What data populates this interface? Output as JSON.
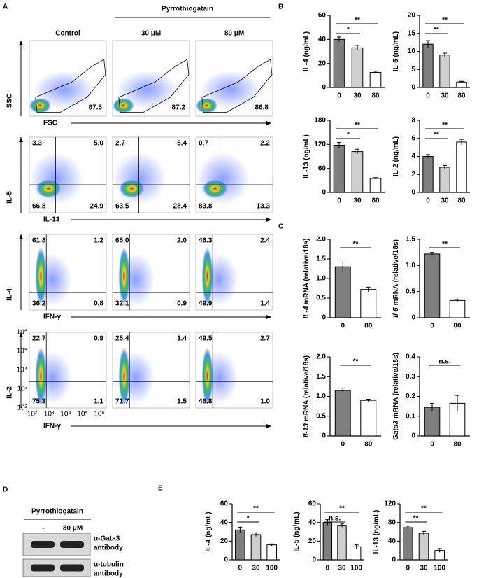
{
  "panel_labels": [
    "A",
    "B",
    "C",
    "D",
    "E"
  ],
  "flow": {
    "treatment": "Pyrrothiogatain",
    "conditions": [
      "Control",
      "30 μM",
      "80 μM"
    ],
    "rows": [
      {
        "y_axis": "SSC",
        "x_axis": "FSC",
        "gate": [
          "87.5",
          "87.2",
          "86.8"
        ]
      },
      {
        "y_axis": "IL-5",
        "x_axis": "IL-13",
        "quadrants": [
          [
            "3.3",
            "5.0",
            "66.8",
            "24.9"
          ],
          [
            "2.7",
            "5.4",
            "63.5",
            "28.4"
          ],
          [
            "0.7",
            "2.2",
            "83.8",
            "13.3"
          ]
        ]
      },
      {
        "y_axis": "IL-4",
        "x_axis": "IFN-γ",
        "quadrants": [
          [
            "61.8",
            "1.2",
            "36.2",
            "0.8"
          ],
          [
            "65.0",
            "2.0",
            "32.1",
            "0.9"
          ],
          [
            "46.3",
            "2.4",
            "49.9",
            "1.4"
          ]
        ]
      },
      {
        "y_axis": "IL-2",
        "x_axis": "IFN-γ",
        "quadrants": [
          [
            "22.7",
            "0.9",
            "75.3",
            "1.1"
          ],
          [
            "25.4",
            "1.4",
            "71.7",
            "1.5"
          ],
          [
            "49.5",
            "2.7",
            "46.8",
            "1.0"
          ]
        ]
      }
    ],
    "log_ticks": [
      "10²",
      "10³",
      "10⁴",
      "10⁵",
      "10⁶"
    ]
  },
  "western": {
    "treatment": "Pyrrothiogatain",
    "lanes": [
      "-",
      "80 μM"
    ],
    "blots": [
      [
        "α-Gata3",
        "antibody"
      ],
      [
        "α-tubulin",
        "antibody"
      ]
    ]
  },
  "chart_data": [
    {
      "type": "bar",
      "ylabel": "IL-4 (ng/mL)",
      "categories": [
        "0",
        "30",
        "80"
      ],
      "values": [
        40,
        33,
        12.5
      ],
      "errors": [
        2,
        2,
        1
      ],
      "colors": [
        "#7f7f7f",
        "#cfcfcf",
        "#ffffff"
      ],
      "ylim": [
        0,
        60
      ],
      "yticks": [
        0,
        20,
        40,
        60
      ],
      "significance": [
        {
          "pair": [
            "0",
            "30"
          ],
          "label": "*"
        },
        {
          "pair": [
            "0",
            "80"
          ],
          "label": "**"
        }
      ]
    },
    {
      "type": "bar",
      "ylabel": "IL-5 (ng/mL)",
      "categories": [
        "0",
        "30",
        "80"
      ],
      "values": [
        12,
        9,
        1.5
      ],
      "errors": [
        1,
        0.5,
        0.2
      ],
      "colors": [
        "#7f7f7f",
        "#cfcfcf",
        "#ffffff"
      ],
      "ylim": [
        0,
        20
      ],
      "yticks": [
        0,
        5,
        10,
        15,
        20
      ],
      "significance": [
        {
          "pair": [
            "0",
            "30"
          ],
          "label": "**"
        },
        {
          "pair": [
            "0",
            "80"
          ],
          "label": "**"
        }
      ]
    },
    {
      "type": "bar",
      "ylabel": "IL-13 (ng/mL)",
      "categories": [
        "0",
        "30",
        "80"
      ],
      "values": [
        118,
        102,
        35
      ],
      "errors": [
        7,
        6,
        2
      ],
      "colors": [
        "#7f7f7f",
        "#cfcfcf",
        "#ffffff"
      ],
      "ylim": [
        0,
        180
      ],
      "yticks": [
        0,
        60,
        120,
        180
      ],
      "significance": [
        {
          "pair": [
            "0",
            "30"
          ],
          "label": "*"
        },
        {
          "pair": [
            "0",
            "80"
          ],
          "label": "**"
        }
      ]
    },
    {
      "type": "bar",
      "ylabel": "IL-2 (ng/mL)",
      "categories": [
        "0",
        "30",
        "80"
      ],
      "values": [
        4,
        2.8,
        5.6
      ],
      "errors": [
        0.2,
        0.2,
        0.3
      ],
      "colors": [
        "#7f7f7f",
        "#cfcfcf",
        "#ffffff"
      ],
      "ylim": [
        0,
        8
      ],
      "yticks": [
        0,
        2,
        4,
        6,
        8
      ],
      "significance": [
        {
          "pair": [
            "0",
            "30"
          ],
          "label": "**"
        },
        {
          "pair": [
            "0",
            "80"
          ],
          "label": "**"
        }
      ]
    },
    {
      "type": "bar",
      "ylabel_gene": "IL-4",
      "ylabel": "mRNA (relative/18s)",
      "categories": [
        "0",
        "80"
      ],
      "values": [
        1.3,
        0.72
      ],
      "errors": [
        0.12,
        0.06
      ],
      "colors": [
        "#7f7f7f",
        "#ffffff"
      ],
      "ylim": [
        0,
        2
      ],
      "yticks": [
        0,
        0.5,
        {
          "value": 1,
          "label": "1.0"
        },
        1.5,
        {
          "value": 2,
          "label": "2.0"
        }
      ],
      "significance": [
        {
          "pair": [
            "0",
            "80"
          ],
          "label": "**"
        }
      ]
    },
    {
      "type": "bar",
      "ylabel_gene": "Il-5",
      "ylabel": "mRNA (relative/18s)",
      "categories": [
        "0",
        "80"
      ],
      "values": [
        1.22,
        0.33
      ],
      "errors": [
        0.03,
        0.02
      ],
      "colors": [
        "#7f7f7f",
        "#ffffff"
      ],
      "ylim": [
        0,
        1.5
      ],
      "yticks": [
        0,
        0.5,
        {
          "value": 1,
          "label": "1.0"
        },
        1.5
      ],
      "significance": [
        {
          "pair": [
            "0",
            "80"
          ],
          "label": "**"
        }
      ]
    },
    {
      "type": "bar",
      "ylabel_gene": "Il-13",
      "ylabel": "mRNA (relative/18s)",
      "categories": [
        "0",
        "80"
      ],
      "values": [
        1.15,
        0.9
      ],
      "errors": [
        0.06,
        0.03
      ],
      "colors": [
        "#7f7f7f",
        "#ffffff"
      ],
      "ylim": [
        0,
        2
      ],
      "yticks": [
        0,
        0.5,
        {
          "value": 1,
          "label": "1.0"
        },
        1.5,
        {
          "value": 2,
          "label": "2.0"
        }
      ],
      "significance": [
        {
          "pair": [
            "0",
            "80"
          ],
          "label": "**"
        }
      ]
    },
    {
      "type": "bar",
      "ylabel_gene": "Gata3",
      "ylabel": "mRNA (relative/18s)",
      "categories": [
        "0",
        "80"
      ],
      "values": [
        0.145,
        0.165
      ],
      "errors": [
        0.02,
        0.04
      ],
      "colors": [
        "#7f7f7f",
        "#ffffff"
      ],
      "ylim": [
        0,
        0.4
      ],
      "yticks": [
        0,
        0.1,
        0.2,
        0.3,
        0.4
      ],
      "significance": [
        {
          "pair": [
            "0",
            "80"
          ],
          "label": "n.s."
        }
      ]
    },
    {
      "type": "bar",
      "ylabel": "IL-4 (ng/mL)",
      "categories": [
        "0",
        "30",
        "100"
      ],
      "values": [
        32,
        27,
        16
      ],
      "errors": [
        3,
        2,
        1
      ],
      "colors": [
        "#7f7f7f",
        "#cfcfcf",
        "#ffffff"
      ],
      "ylim": [
        0,
        60
      ],
      "yticks": [
        0,
        20,
        40,
        60
      ],
      "significance": [
        {
          "pair": [
            "0",
            "30"
          ],
          "label": "*"
        },
        {
          "pair": [
            "0",
            "100"
          ],
          "label": "**"
        }
      ]
    },
    {
      "type": "bar",
      "ylabel": "IL-5 (ng/mL)",
      "categories": [
        "0",
        "30",
        "100"
      ],
      "values": [
        40,
        37,
        14
      ],
      "errors": [
        3,
        2,
        2
      ],
      "colors": [
        "#7f7f7f",
        "#cfcfcf",
        "#ffffff"
      ],
      "ylim": [
        0,
        60
      ],
      "yticks": [
        0,
        20,
        40,
        60
      ],
      "significance": [
        {
          "pair": [
            "0",
            "30"
          ],
          "label": "n.s."
        },
        {
          "pair": [
            "0",
            "100"
          ],
          "label": "**"
        }
      ]
    },
    {
      "type": "bar",
      "ylabel": "IL-13 (ng/mL)",
      "categories": [
        "0",
        "30",
        "100"
      ],
      "values": [
        69,
        57,
        20
      ],
      "errors": [
        3,
        4,
        4
      ],
      "colors": [
        "#7f7f7f",
        "#cfcfcf",
        "#ffffff"
      ],
      "ylim": [
        0,
        120
      ],
      "yticks": [
        0,
        40,
        80,
        120
      ],
      "significance": [
        {
          "pair": [
            "0",
            "30"
          ],
          "label": "**"
        },
        {
          "pair": [
            "0",
            "100"
          ],
          "label": "**"
        }
      ]
    }
  ]
}
